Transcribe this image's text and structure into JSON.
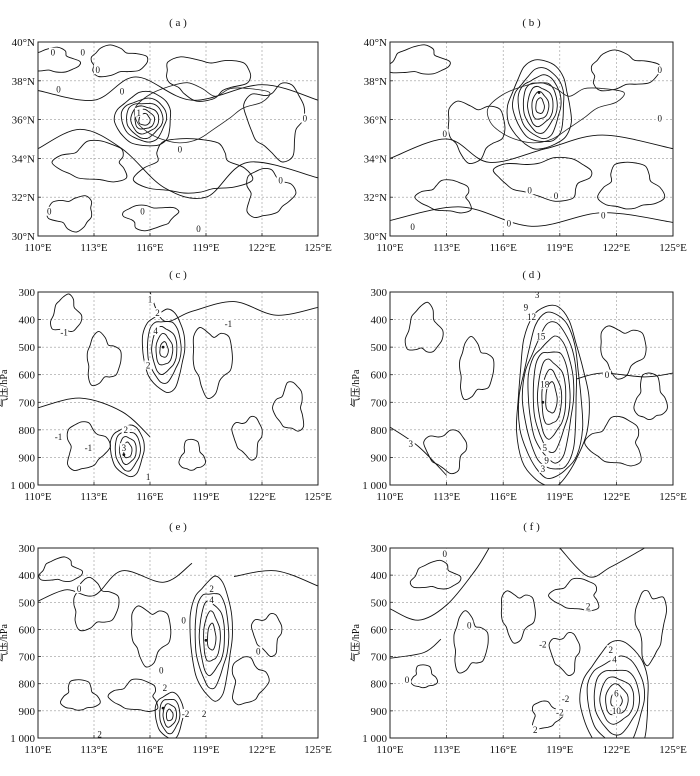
{
  "chart_data": [
    {
      "type": "contour-map",
      "panel_label": "( a )",
      "x": {
        "ticks": [
          "110°E",
          "113°E",
          "116°E",
          "119°E",
          "122°E",
          "125°E"
        ],
        "range": [
          110,
          125
        ]
      },
      "y": {
        "ticks": [
          "30°N",
          "32°N",
          "34°N",
          "36°N",
          "38°N",
          "40°N"
        ],
        "range": [
          30,
          40
        ]
      },
      "ylabel": "",
      "contour_labels": [
        {
          "text": "0",
          "x": 110.8,
          "y": 39.4
        },
        {
          "text": "0",
          "x": 112.4,
          "y": 39.4
        },
        {
          "text": "0",
          "x": 113.2,
          "y": 38.5
        },
        {
          "text": "0",
          "x": 111.1,
          "y": 37.5
        },
        {
          "text": "0",
          "x": 114.5,
          "y": 37.4
        },
        {
          "text": "0",
          "x": 124.3,
          "y": 36.0
        },
        {
          "text": "1",
          "x": 115.4,
          "y": 36.3
        },
        {
          "text": "0",
          "x": 117.6,
          "y": 34.4
        },
        {
          "text": "0",
          "x": 123.0,
          "y": 32.8
        },
        {
          "text": "0",
          "x": 110.6,
          "y": 31.2
        },
        {
          "text": "0",
          "x": 115.6,
          "y": 31.2
        },
        {
          "text": "0",
          "x": 118.6,
          "y": 30.3
        }
      ],
      "extrema": [
        {
          "x": 115.3,
          "y": 36.2
        }
      ]
    },
    {
      "type": "contour-map",
      "panel_label": "( b )",
      "x": {
        "ticks": [
          "110°E",
          "113°E",
          "116°E",
          "119°E",
          "122°E",
          "125°E"
        ],
        "range": [
          110,
          125
        ]
      },
      "y": {
        "ticks": [
          "30°N",
          "32°N",
          "34°N",
          "36°N",
          "38°N",
          "40°N"
        ],
        "range": [
          30,
          40
        ]
      },
      "ylabel": "",
      "contour_labels": [
        {
          "text": "0",
          "x": 124.3,
          "y": 38.5
        },
        {
          "text": "0",
          "x": 124.3,
          "y": 36.0
        },
        {
          "text": "0",
          "x": 112.9,
          "y": 35.2
        },
        {
          "text": "0",
          "x": 117.4,
          "y": 32.3
        },
        {
          "text": "0",
          "x": 118.8,
          "y": 32.0
        },
        {
          "text": "0",
          "x": 121.3,
          "y": 31.0
        },
        {
          "text": "0",
          "x": 116.3,
          "y": 30.6
        },
        {
          "text": "0",
          "x": 111.2,
          "y": 30.4
        }
      ],
      "extrema": [
        {
          "x": 117.9,
          "y": 37.4
        }
      ]
    },
    {
      "type": "contour-section",
      "panel_label": "( c )",
      "x": {
        "ticks": [
          "110°E",
          "113°E",
          "116°E",
          "119°E",
          "122°E",
          "125°E"
        ],
        "range": [
          110,
          125
        ]
      },
      "y": {
        "ticks": [
          "300",
          "400",
          "500",
          "600",
          "700",
          "800",
          "900",
          "1 000"
        ],
        "range": [
          300,
          1000
        ]
      },
      "ylabel": "气压/hPa",
      "contour_labels": [
        {
          "text": "-1",
          "x": 111.4,
          "y": 450
        },
        {
          "text": "1",
          "x": 116.0,
          "y": 330
        },
        {
          "text": "2",
          "x": 116.4,
          "y": 380
        },
        {
          "text": "4",
          "x": 116.3,
          "y": 445
        },
        {
          "text": "2",
          "x": 115.9,
          "y": 570
        },
        {
          "text": "-1",
          "x": 120.2,
          "y": 420
        },
        {
          "text": "2",
          "x": 114.7,
          "y": 805
        },
        {
          "text": "-1",
          "x": 111.1,
          "y": 830
        },
        {
          "text": "-1",
          "x": 112.7,
          "y": 870
        },
        {
          "text": "3",
          "x": 114.6,
          "y": 870
        },
        {
          "text": "1",
          "x": 115.9,
          "y": 975
        }
      ],
      "extrema": [
        {
          "x": 116.7,
          "y": 500
        },
        {
          "x": 114.6,
          "y": 890
        }
      ]
    },
    {
      "type": "contour-section",
      "panel_label": "( d )",
      "x": {
        "ticks": [
          "110°E",
          "113°E",
          "116°E",
          "119°E",
          "122°E",
          "125°E"
        ],
        "range": [
          110,
          125
        ]
      },
      "y": {
        "ticks": [
          "300",
          "400",
          "500",
          "600",
          "700",
          "800",
          "900",
          "1 000"
        ],
        "range": [
          300,
          1000
        ]
      },
      "ylabel": "气压/hPa",
      "contour_labels": [
        {
          "text": "3",
          "x": 117.8,
          "y": 315
        },
        {
          "text": "9",
          "x": 117.2,
          "y": 360
        },
        {
          "text": "12",
          "x": 117.5,
          "y": 395
        },
        {
          "text": "15",
          "x": 118.0,
          "y": 465
        },
        {
          "text": "18",
          "x": 118.2,
          "y": 640
        },
        {
          "text": "0",
          "x": 121.5,
          "y": 605
        },
        {
          "text": "3",
          "x": 111.1,
          "y": 855
        },
        {
          "text": "5",
          "x": 118.2,
          "y": 870
        },
        {
          "text": "9",
          "x": 118.3,
          "y": 915
        },
        {
          "text": "3",
          "x": 118.1,
          "y": 945
        }
      ],
      "extrema": [
        {
          "x": 118.1,
          "y": 700
        }
      ]
    },
    {
      "type": "contour-section",
      "panel_label": "( e )",
      "x": {
        "ticks": [
          "110°E",
          "113°E",
          "116°E",
          "119°E",
          "122°E",
          "125°E"
        ],
        "range": [
          110,
          125
        ]
      },
      "y": {
        "ticks": [
          "300",
          "400",
          "500",
          "600",
          "700",
          "800",
          "900",
          "1 000"
        ],
        "range": [
          300,
          1000
        ]
      },
      "ylabel": "气压/hPa",
      "contour_labels": [
        {
          "text": "2",
          "x": 119.3,
          "y": 455
        },
        {
          "text": "4",
          "x": 119.3,
          "y": 495
        },
        {
          "text": "0",
          "x": 112.2,
          "y": 455
        },
        {
          "text": "0",
          "x": 117.8,
          "y": 570
        },
        {
          "text": "0",
          "x": 121.8,
          "y": 685
        },
        {
          "text": "2",
          "x": 116.8,
          "y": 820
        },
        {
          "text": "0",
          "x": 116.6,
          "y": 755
        },
        {
          "text": "-2",
          "x": 117.9,
          "y": 915
        },
        {
          "text": "2",
          "x": 113.3,
          "y": 990
        },
        {
          "text": "2",
          "x": 118.9,
          "y": 915
        }
      ],
      "extrema": [
        {
          "x": 116.7,
          "y": 890
        },
        {
          "x": 119.0,
          "y": 640
        }
      ]
    },
    {
      "type": "contour-section",
      "panel_label": "( f )",
      "x": {
        "ticks": [
          "110°E",
          "113°E",
          "116°E",
          "119°E",
          "122°E",
          "125°E"
        ],
        "range": [
          110,
          125
        ]
      },
      "y": {
        "ticks": [
          "300",
          "400",
          "500",
          "600",
          "700",
          "800",
          "900",
          "1 000"
        ],
        "range": [
          300,
          1000
        ]
      },
      "ylabel": "气压/hPa",
      "contour_labels": [
        {
          "text": "0",
          "x": 112.9,
          "y": 325
        },
        {
          "text": "2",
          "x": 120.5,
          "y": 520
        },
        {
          "text": "-2",
          "x": 118.1,
          "y": 660
        },
        {
          "text": "0",
          "x": 114.2,
          "y": 590
        },
        {
          "text": "2",
          "x": 121.7,
          "y": 680
        },
        {
          "text": "4",
          "x": 121.9,
          "y": 715
        },
        {
          "text": "0",
          "x": 110.9,
          "y": 790
        },
        {
          "text": "-2",
          "x": 119.0,
          "y": 910
        },
        {
          "text": "-2",
          "x": 119.3,
          "y": 860
        },
        {
          "text": "2",
          "x": 117.7,
          "y": 975
        },
        {
          "text": "10",
          "x": 122.0,
          "y": 905
        },
        {
          "text": "6",
          "x": 122.0,
          "y": 840
        }
      ],
      "extrema": [
        {
          "x": 122.0,
          "y": 890
        }
      ]
    }
  ]
}
